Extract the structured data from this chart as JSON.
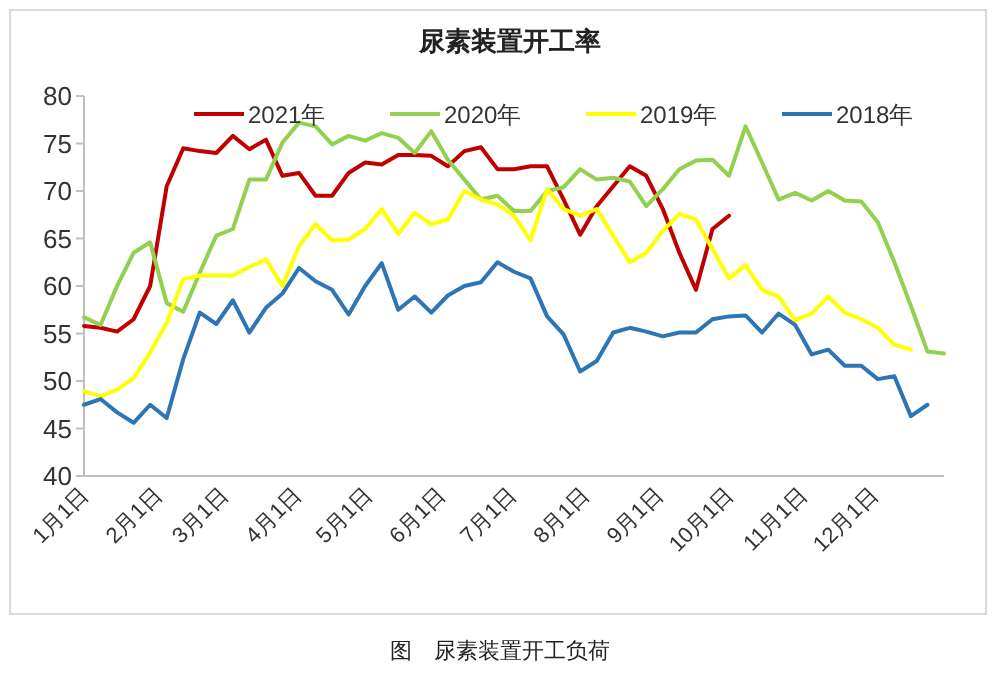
{
  "chart_data": {
    "type": "line",
    "title": "尿素装置开工率",
    "annotations": [
      "图　尿素装置开工负荷"
    ],
    "x": [
      "--01-01",
      "--01-08",
      "--01-15",
      "--01-22",
      "--01-29",
      "--02-05",
      "--02-12",
      "--02-19",
      "--02-26",
      "--03-05",
      "--03-12",
      "--03-19",
      "--03-26",
      "--04-02",
      "--04-09",
      "--04-16",
      "--04-23",
      "--04-30",
      "--05-07",
      "--05-14",
      "--05-21",
      "--05-28",
      "--06-04",
      "--06-11",
      "--06-18",
      "--06-25",
      "--07-02",
      "--07-09",
      "--07-16",
      "--07-23",
      "--07-30",
      "--08-06",
      "--08-13",
      "--08-20",
      "--08-27",
      "--09-03",
      "--09-10",
      "--09-17",
      "--09-24",
      "--10-01",
      "--10-08",
      "--10-15",
      "--10-22",
      "--10-29",
      "--11-05",
      "--11-12",
      "--11-19",
      "--11-26",
      "--12-03",
      "--12-10",
      "--12-17",
      "--12-24",
      "--12-31"
    ],
    "xlim": [
      "--01-01",
      "--12-31"
    ],
    "xticks": [
      {
        "value": "--01-01",
        "label": "1月1日"
      },
      {
        "value": "--02-01",
        "label": "2月1日"
      },
      {
        "value": "--03-01",
        "label": "3月1日"
      },
      {
        "value": "--04-01",
        "label": "4月1日"
      },
      {
        "value": "--05-01",
        "label": "5月1日"
      },
      {
        "value": "--06-01",
        "label": "6月1日"
      },
      {
        "value": "--07-01",
        "label": "7月1日"
      },
      {
        "value": "--08-01",
        "label": "8月1日"
      },
      {
        "value": "--09-01",
        "label": "9月1日"
      },
      {
        "value": "--10-01",
        "label": "10月1日"
      },
      {
        "value": "--11-01",
        "label": "11月1日"
      },
      {
        "value": "--12-01",
        "label": "12月1日"
      }
    ],
    "ylim": [
      40,
      80
    ],
    "yticks": [
      40,
      45,
      50,
      55,
      60,
      65,
      70,
      75,
      80
    ],
    "legend": "top",
    "grid": false,
    "series": [
      {
        "name": "2021年",
        "color": "#c00000",
        "values": [
          55.8,
          55.6,
          55.2,
          56.5,
          60,
          70.5,
          74.5,
          74.2,
          74.0,
          75.8,
          74.4,
          75.4,
          71.6,
          71.9,
          69.5,
          69.5,
          71.9,
          73.0,
          72.8,
          73.8,
          73.8,
          73.7,
          72.6,
          74.2,
          74.6,
          72.3,
          72.3,
          72.6,
          72.6,
          69.1,
          65.4,
          68.4,
          70.5,
          72.6,
          71.6,
          68.1,
          63.5,
          59.6,
          66.0,
          67.4,
          null,
          null,
          null,
          null,
          null,
          null,
          null,
          null,
          null,
          null,
          null,
          null,
          null
        ]
      },
      {
        "name": "2020年",
        "color": "#92d050",
        "values": [
          56.7,
          55.9,
          60,
          63.5,
          64.6,
          58.2,
          57.3,
          61.4,
          65.3,
          66,
          71.2,
          71.2,
          75.1,
          77.2,
          76.8,
          74.9,
          75.8,
          75.3,
          76.1,
          75.6,
          74.0,
          76.3,
          73.3,
          71.2,
          69.1,
          69.5,
          67.9,
          67.9,
          70.0,
          70.4,
          72.3,
          71.2,
          71.4,
          71.0,
          68.4,
          70.2,
          72.3,
          73.2,
          73.3,
          71.6,
          76.8,
          73.0,
          69.1,
          69.8,
          69.0,
          70.0,
          69.0,
          68.9,
          66.7,
          62.5,
          57.9,
          53.1,
          52.9
        ]
      },
      {
        "name": "2019年",
        "color": "#ffff00",
        "values": [
          48.9,
          48.4,
          49.1,
          50.3,
          53,
          56.1,
          60.7,
          61.1,
          61.1,
          61.1,
          62.0,
          62.8,
          60.0,
          64.2,
          66.5,
          64.8,
          64.9,
          66.0,
          68.1,
          65.5,
          67.7,
          66.5,
          67.0,
          70.0,
          69.1,
          68.6,
          67.4,
          64.8,
          70.2,
          68.1,
          67.4,
          68.1,
          65.3,
          62.5,
          63.5,
          65.8,
          67.6,
          67.0,
          63.9,
          60.8,
          62.2,
          59.6,
          58.9,
          56.4,
          57.1,
          58.9,
          57.2,
          56.5,
          55.6,
          53.8,
          53.3,
          null,
          null
        ]
      },
      {
        "name": "2018年",
        "color": "#2e75b6",
        "values": [
          47.5,
          48.1,
          46.7,
          45.6,
          47.5,
          46.1,
          52.3,
          57.2,
          56.0,
          58.5,
          55.1,
          57.7,
          59.2,
          61.9,
          60.5,
          59.6,
          57.0,
          60,
          62.4,
          57.5,
          58.9,
          57.2,
          59,
          60,
          60.4,
          62.5,
          61.5,
          60.8,
          56.8,
          54.9,
          51.0,
          52.1,
          55.1,
          55.6,
          55.2,
          54.7,
          55.1,
          55.1,
          56.5,
          56.8,
          56.9,
          55.1,
          57.1,
          55.9,
          52.8,
          53.3,
          51.6,
          51.6,
          50.2,
          50.5,
          46.3,
          47.5,
          null
        ]
      }
    ]
  }
}
